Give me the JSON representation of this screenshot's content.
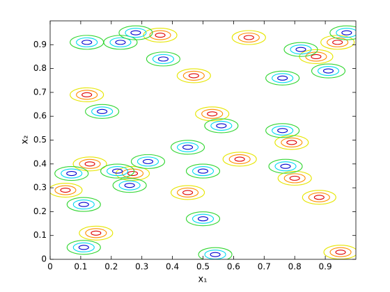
{
  "chart_data": {
    "type": "contour",
    "xlabel": "x₁",
    "ylabel": "x₂",
    "xlim": [
      0,
      1
    ],
    "ylim": [
      0,
      1
    ],
    "xticks": [
      0,
      0.1,
      0.2,
      0.3,
      0.4,
      0.5,
      0.6,
      0.7,
      0.8,
      0.9
    ],
    "yticks": [
      0,
      0.1,
      0.2,
      0.3,
      0.4,
      0.5,
      0.6,
      0.7,
      0.8,
      0.9
    ],
    "high_colors": [
      "#e6e600",
      "#ff8c00",
      "#e00000"
    ],
    "low_colors": [
      "#33d633",
      "#00d8f0",
      "#0000d0"
    ],
    "highs": {
      "x": [
        0.12,
        0.27,
        0.47,
        0.53,
        0.13,
        0.95,
        0.45,
        0.8,
        0.79,
        0.87,
        0.94,
        0.36,
        0.05,
        0.15,
        0.65,
        0.88,
        0.62
      ],
      "y": [
        0.69,
        0.36,
        0.77,
        0.61,
        0.4,
        0.03,
        0.28,
        0.34,
        0.49,
        0.85,
        0.91,
        0.94,
        0.29,
        0.11,
        0.93,
        0.26,
        0.42
      ]
    },
    "lows": {
      "x": [
        0.11,
        0.17,
        0.07,
        0.22,
        0.26,
        0.5,
        0.56,
        0.76,
        0.77,
        0.91,
        0.76,
        0.12,
        0.23,
        0.37,
        0.5,
        0.54,
        0.82,
        0.97,
        0.11,
        0.32,
        0.45,
        0.28
      ],
      "y": [
        0.05,
        0.62,
        0.36,
        0.37,
        0.31,
        0.37,
        0.56,
        0.54,
        0.39,
        0.79,
        0.76,
        0.91,
        0.91,
        0.84,
        0.17,
        0.02,
        0.88,
        0.95,
        0.23,
        0.41,
        0.47,
        0.95
      ]
    }
  }
}
